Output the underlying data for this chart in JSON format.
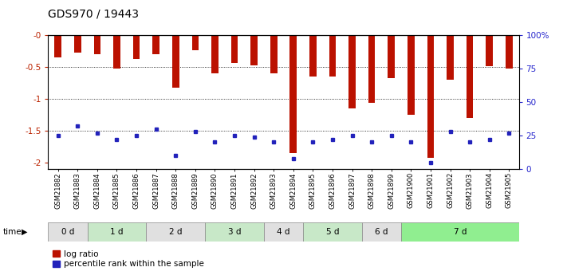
{
  "title": "GDS970 / 19443",
  "samples": [
    "GSM21882",
    "GSM21883",
    "GSM21884",
    "GSM21885",
    "GSM21886",
    "GSM21887",
    "GSM21888",
    "GSM21889",
    "GSM21890",
    "GSM21891",
    "GSM21892",
    "GSM21893",
    "GSM21894",
    "GSM21895",
    "GSM21896",
    "GSM21897",
    "GSM21898",
    "GSM21899",
    "GSM21900",
    "GSM21901",
    "GSM21902",
    "GSM21903",
    "GSM21904",
    "GSM21905"
  ],
  "log_ratio": [
    -0.35,
    -0.28,
    -0.3,
    -0.52,
    -0.38,
    -0.3,
    -0.83,
    -0.24,
    -0.6,
    -0.44,
    -0.47,
    -0.6,
    -1.85,
    -0.65,
    -0.65,
    -1.15,
    -1.06,
    -0.68,
    -1.25,
    -1.93,
    -0.7,
    -1.3,
    -0.49,
    -0.52
  ],
  "percentile": [
    25,
    32,
    27,
    22,
    25,
    30,
    10,
    28,
    20,
    25,
    24,
    20,
    8,
    20,
    22,
    25,
    20,
    25,
    20,
    5,
    28,
    20,
    22,
    27
  ],
  "time_groups": [
    {
      "label": "0 d",
      "start": 0,
      "end": 2,
      "color": "#e0e0e0"
    },
    {
      "label": "1 d",
      "start": 2,
      "end": 5,
      "color": "#c8e8c8"
    },
    {
      "label": "2 d",
      "start": 5,
      "end": 8,
      "color": "#e0e0e0"
    },
    {
      "label": "3 d",
      "start": 8,
      "end": 11,
      "color": "#c8e8c8"
    },
    {
      "label": "4 d",
      "start": 11,
      "end": 13,
      "color": "#e0e0e0"
    },
    {
      "label": "5 d",
      "start": 13,
      "end": 16,
      "color": "#c8e8c8"
    },
    {
      "label": "6 d",
      "start": 16,
      "end": 18,
      "color": "#e0e0e0"
    },
    {
      "label": "7 d",
      "start": 18,
      "end": 24,
      "color": "#90ee90"
    }
  ],
  "ylim": [
    -2.1,
    0.0
  ],
  "yticks": [
    0,
    -0.5,
    -1.0,
    -1.5,
    -2.0
  ],
  "ytick_labels": [
    "-0",
    "-0.5",
    "-1",
    "-1.5",
    "-2"
  ],
  "right_yticks": [
    0,
    25,
    50,
    75,
    100
  ],
  "right_ytick_labels": [
    "0",
    "25",
    "50",
    "75",
    "100%"
  ],
  "bar_color": "#bb1100",
  "blue_color": "#2222bb",
  "title_fontsize": 10,
  "axis_label_color_left": "#bb2200",
  "axis_label_color_right": "#2222cc",
  "legend_log_ratio": "log ratio",
  "legend_percentile": "percentile rank within the sample"
}
